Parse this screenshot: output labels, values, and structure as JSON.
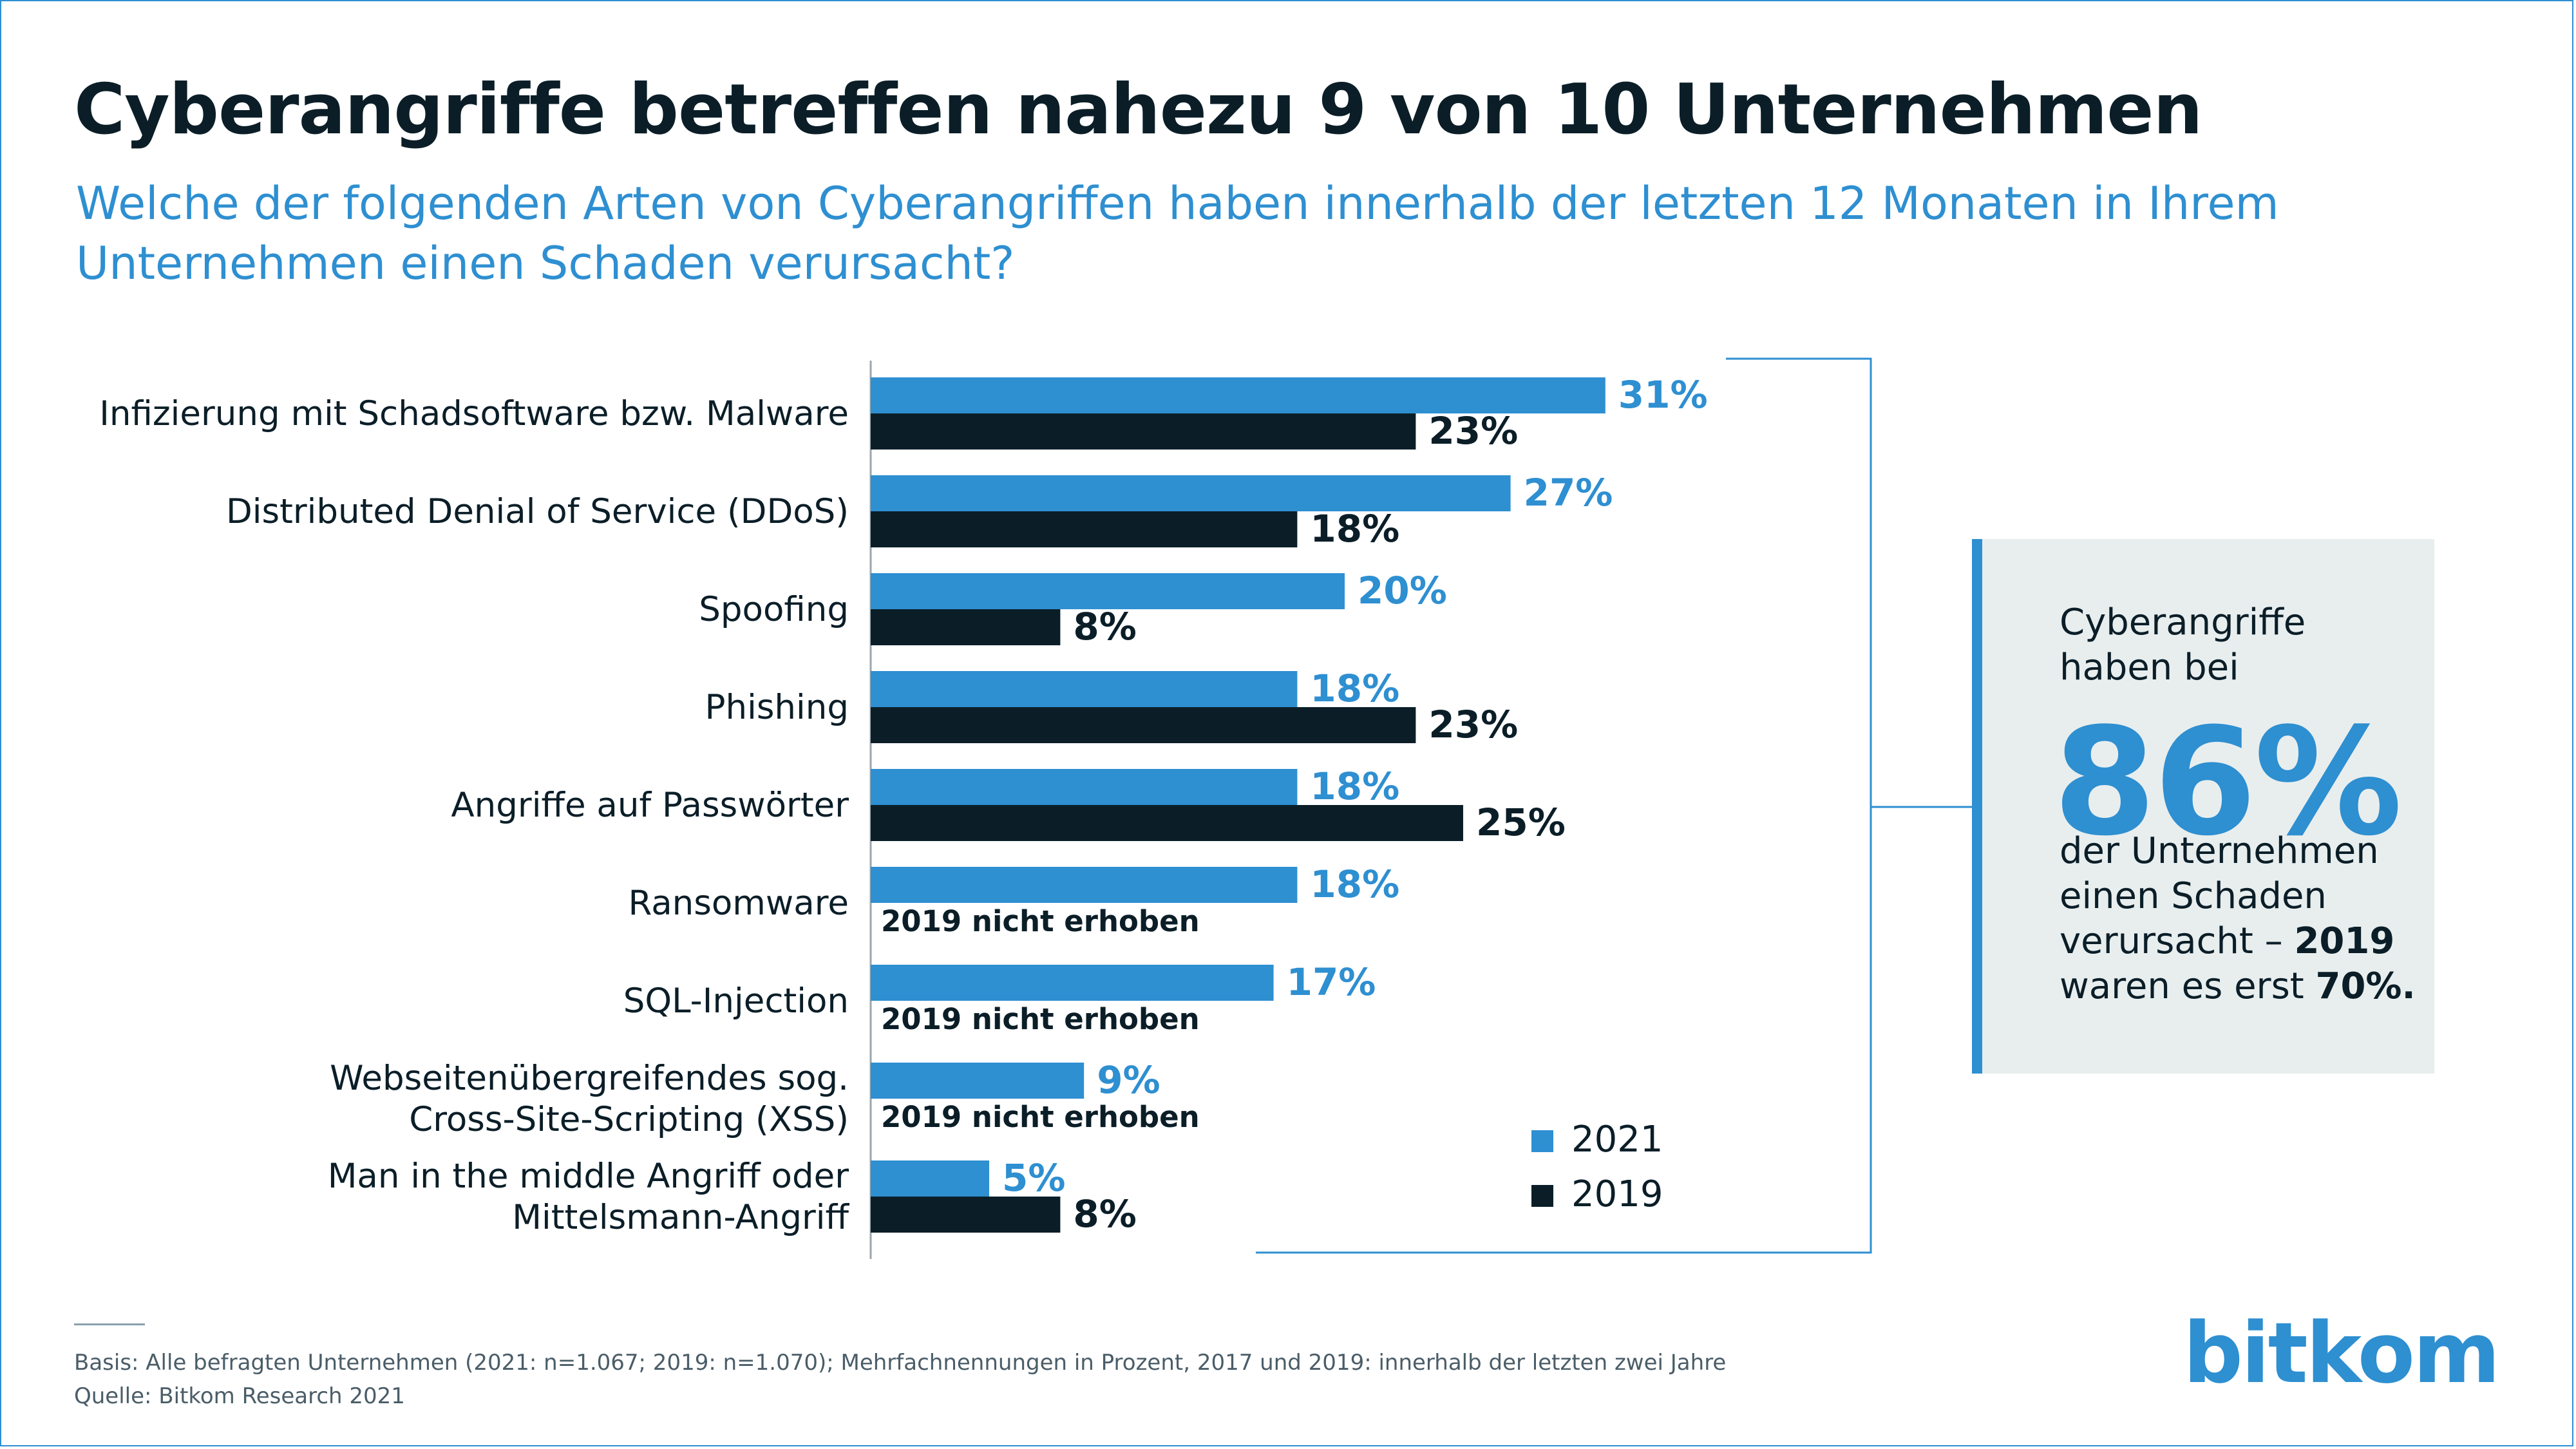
{
  "title": "Cyberangriffe betreffen nahezu 9 von 10 Unternehmen",
  "subtitle": "Welche der folgenden Arten von Cyberangriffen haben innerhalb der letzten 12 Monaten in Ihrem Unternehmen einen Schaden verursacht?",
  "colors": {
    "series_2021": "#2e8fd1",
    "series_2019": "#0b1e28",
    "accent": "#2e8fd1"
  },
  "chart_data": {
    "type": "bar",
    "orientation": "horizontal",
    "categories": [
      [
        "Infizierung mit Schadsoftware bzw. Malware"
      ],
      [
        "Distributed Denial of Service (DDoS)"
      ],
      [
        "Spoofing"
      ],
      [
        "Phishing"
      ],
      [
        "Angriffe auf Passwörter"
      ],
      [
        "Ransomware"
      ],
      [
        "SQL-Injection"
      ],
      [
        "Webseitenübergreifendes sog.",
        "Cross-Site-Scripting (XSS)"
      ],
      [
        "Man in the middle Angriff oder",
        "Mittelsmann-Angriff"
      ]
    ],
    "series": [
      {
        "name": "2021",
        "values": [
          31,
          27,
          20,
          18,
          18,
          18,
          17,
          9,
          5
        ]
      },
      {
        "name": "2019",
        "values": [
          23,
          18,
          8,
          23,
          25,
          null,
          null,
          null,
          8
        ]
      }
    ],
    "value_suffix": "%",
    "missing_label": "2019 nicht erhoben",
    "legend": [
      "2021",
      "2019"
    ],
    "legend_position": "bottom-right"
  },
  "callout": {
    "line1": "Cyberangriffe",
    "line2": "haben bei",
    "big_value": "86%",
    "line3": "der Unternehmen",
    "line4": "einen Schaden",
    "line5_pre": "verursacht – ",
    "line5_bold": "2019",
    "line6_pre": "waren es erst ",
    "line6_bold": "70%."
  },
  "footer": {
    "basis": "Basis: Alle befragten Unternehmen (2021: n=1.067; 2019: n=1.070); Mehrfachnennungen in Prozent, 2017 und 2019: innerhalb der letzten zwei Jahre",
    "source": "Quelle: Bitkom Research 2021"
  },
  "logo": "bitkom"
}
